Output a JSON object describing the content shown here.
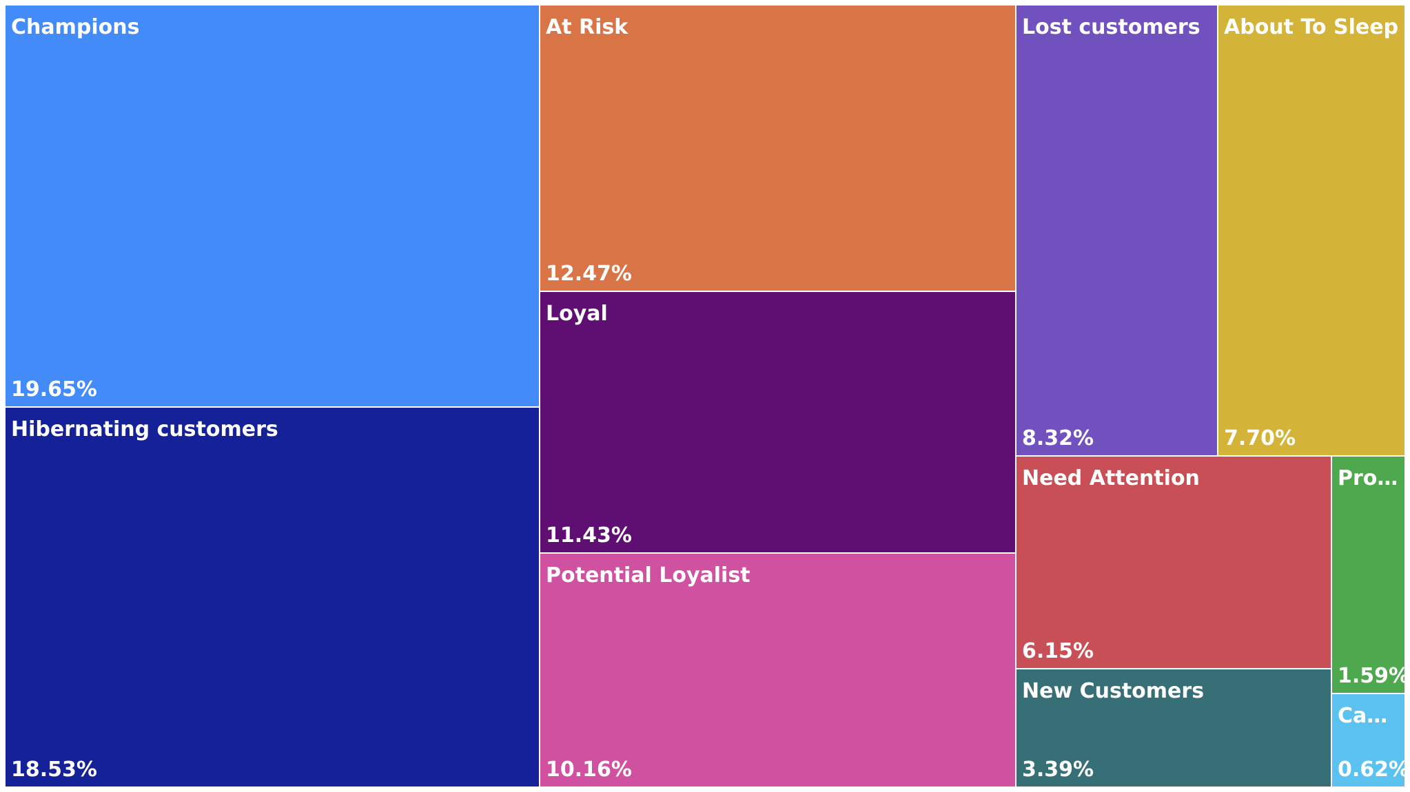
{
  "chart_data": {
    "type": "treemap",
    "title": "",
    "unit": "%",
    "items": [
      {
        "name": "Champions",
        "value": 19.65,
        "label": "Champions",
        "value_label": "19.65%",
        "color": "#428BF9"
      },
      {
        "name": "Hibernating customers",
        "value": 18.53,
        "label": "Hibernating customers",
        "value_label": "18.53%",
        "color": "#152196"
      },
      {
        "name": "At Risk",
        "value": 12.47,
        "label": "At Risk",
        "value_label": "12.47%",
        "color": "#D97447"
      },
      {
        "name": "Loyal",
        "value": 11.43,
        "label": "Loyal",
        "value_label": "11.43%",
        "color": "#5F0E72"
      },
      {
        "name": "Potential Loyalist",
        "value": 10.16,
        "label": "Potential Loyalist",
        "value_label": "10.16%",
        "color": "#CF51A0"
      },
      {
        "name": "Lost customers",
        "value": 8.32,
        "label": "Lost customers",
        "value_label": "8.32%",
        "color": "#7151BD"
      },
      {
        "name": "About To Sleep",
        "value": 7.7,
        "label": "About To Sleep",
        "value_label": "7.70%",
        "color": "#D4B339"
      },
      {
        "name": "Need Attention",
        "value": 6.15,
        "label": "Need Attention",
        "value_label": "6.15%",
        "color": "#C94F56"
      },
      {
        "name": "New Customers",
        "value": 3.39,
        "label": "New Customers",
        "value_label": "3.39%",
        "color": "#376F76"
      },
      {
        "name": "Pro...",
        "value": 1.59,
        "label": "Pro...",
        "value_label": "1.59%",
        "color": "#4DA84E"
      },
      {
        "name": "Can...",
        "value": 0.62,
        "label": "Can...",
        "value_label": "0.62%",
        "color": "#5BC1EE"
      }
    ]
  }
}
